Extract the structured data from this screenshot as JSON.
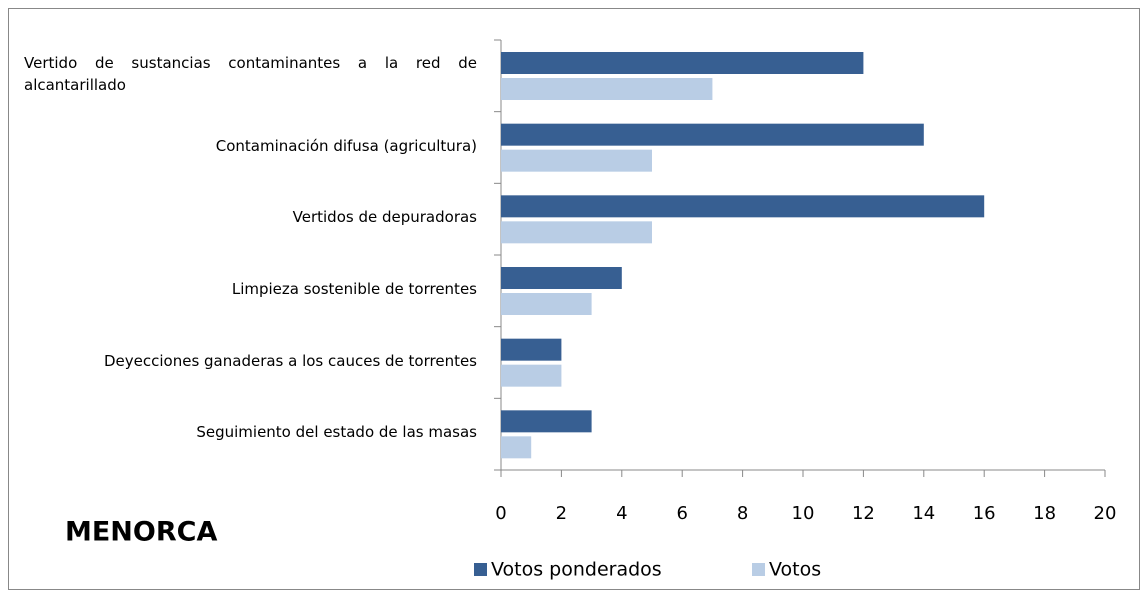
{
  "chart_data": {
    "type": "bar",
    "orientation": "horizontal",
    "title": "MENORCA",
    "categories": [
      "Vertido de sustancias contaminantes a la red de alcantarillado",
      "Contaminación difusa (agricultura)",
      "Vertidos de depuradoras",
      "Limpieza sostenible de torrentes",
      "Deyecciones ganaderas a los cauces de torrentes",
      "Seguimiento del estado de las masas"
    ],
    "series": [
      {
        "name": "Votos ponderados",
        "color": "#375f92",
        "values": [
          12,
          14,
          16,
          4,
          2,
          3
        ]
      },
      {
        "name": "Votos",
        "color": "#b9cde5",
        "values": [
          7,
          5,
          5,
          3,
          2,
          1
        ]
      }
    ],
    "xlim": [
      0,
      20
    ],
    "xticks": [
      0,
      2,
      4,
      6,
      8,
      10,
      12,
      14,
      16,
      18,
      20
    ],
    "grid": false,
    "legend": "bottom"
  }
}
